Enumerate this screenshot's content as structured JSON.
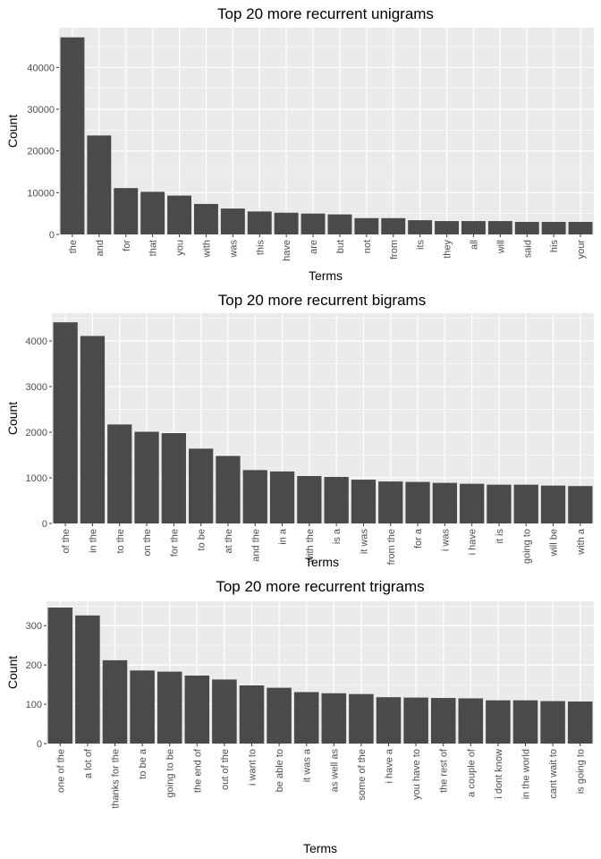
{
  "chart_data": [
    {
      "type": "bar",
      "title": "Top 20 more recurrent unigrams",
      "xlabel": "Terms",
      "ylabel": "Count",
      "ylim": [
        0,
        49500
      ],
      "yticks": [
        0,
        10000,
        20000,
        30000,
        40000
      ],
      "ytick_labels": [
        "0",
        "10000",
        "20000",
        "30000",
        "40000"
      ],
      "categories": [
        "the",
        "and",
        "for",
        "that",
        "you",
        "with",
        "was",
        "this",
        "have",
        "are",
        "but",
        "not",
        "from",
        "its",
        "they",
        "all",
        "will",
        "said",
        "his",
        "your"
      ],
      "values": [
        47200,
        23700,
        11100,
        10200,
        9300,
        7300,
        6200,
        5500,
        5200,
        5000,
        4800,
        3900,
        3900,
        3400,
        3200,
        3200,
        3200,
        3000,
        3000,
        3000
      ],
      "bar_color": "#4a4a4a",
      "panel_color": "#ebebeb",
      "grid": true,
      "legend": "none"
    },
    {
      "type": "bar",
      "title": "Top 20 more recurrent bigrams",
      "xlabel": "Terms",
      "ylabel": "Count",
      "ylim": [
        0,
        4610
      ],
      "yticks": [
        0,
        1000,
        2000,
        3000,
        4000
      ],
      "ytick_labels": [
        "0",
        "1000",
        "2000",
        "3000",
        "4000"
      ],
      "categories": [
        "of the",
        "in the",
        "to the",
        "on the",
        "for the",
        "to be",
        "at the",
        "and the",
        "in a",
        "with the",
        "is a",
        "it was",
        "from the",
        "for a",
        "i was",
        "i have",
        "it is",
        "going to",
        "will be",
        "with a"
      ],
      "values": [
        4410,
        4110,
        2170,
        2010,
        1980,
        1640,
        1480,
        1170,
        1140,
        1040,
        1020,
        960,
        920,
        910,
        890,
        870,
        850,
        850,
        830,
        820
      ],
      "bar_color": "#4a4a4a",
      "panel_color": "#ebebeb",
      "grid": true,
      "legend": "none"
    },
    {
      "type": "bar",
      "title": "Top 20 more recurrent trigrams",
      "xlabel": "Terms",
      "ylabel": "Count",
      "ylim": [
        0,
        362
      ],
      "yticks": [
        0,
        100,
        200,
        300
      ],
      "ytick_labels": [
        "0",
        "100",
        "200",
        "300"
      ],
      "categories": [
        "one of the",
        "a lot of",
        "thanks for the",
        "to be a",
        "going to be",
        "the end of",
        "out of the",
        "i want to",
        "be able to",
        "it was a",
        "as well as",
        "some of the",
        "i have a",
        "you have to",
        "the rest of",
        "a couple of",
        "i dont know",
        "in the world",
        "cant wait to",
        "is going to"
      ],
      "values": [
        346,
        326,
        212,
        186,
        183,
        173,
        163,
        148,
        142,
        131,
        128,
        126,
        118,
        117,
        116,
        115,
        110,
        110,
        108,
        107
      ],
      "bar_color": "#4a4a4a",
      "panel_color": "#ebebeb",
      "grid": true,
      "legend": "none"
    }
  ]
}
